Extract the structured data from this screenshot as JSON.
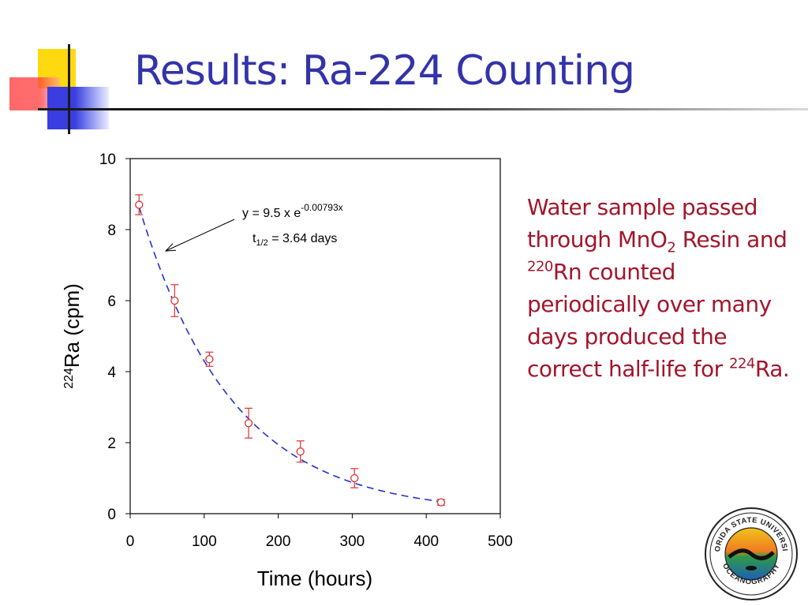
{
  "slide": {
    "title": "Results: Ra-224 Counting",
    "accent_colors": {
      "title": "#3333aa",
      "body_text": "#a3152b",
      "decor_yellow": "#ffd90f",
      "decor_red": "#ff5050",
      "decor_blue": "#3a3ee0"
    }
  },
  "description": {
    "part1": "Water sample passed through MnO",
    "sub1": "2",
    "part2": " Resin and ",
    "sup1": "220",
    "part3": "Rn counted periodically over many days produced the correct half-life for ",
    "sup2": "224",
    "part4": "Ra."
  },
  "logo": {
    "icon": "fsu-oceanography-seal",
    "top_text": "FLORIDA STATE UNIVERSITY",
    "bottom_text": "OCEANOGRAPHY"
  },
  "chart_data": {
    "type": "scatter",
    "xlabel": "Time (hours)",
    "ylabel_sup": "224",
    "ylabel": "Ra (cpm)",
    "xlim": [
      0,
      500
    ],
    "ylim": [
      0,
      10
    ],
    "xticks": [
      "0",
      "100",
      "200",
      "300",
      "400",
      "500"
    ],
    "yticks": [
      "0",
      "2",
      "4",
      "6",
      "8",
      "10"
    ],
    "grid": false,
    "legend": "none",
    "series": [
      {
        "x": [
          12,
          60,
          107,
          160,
          230,
          303,
          420
        ],
        "y": [
          8.7,
          6.0,
          4.35,
          2.55,
          1.75,
          1.0,
          0.32
        ],
        "yerr": [
          0.28,
          0.45,
          0.2,
          0.42,
          0.3,
          0.27,
          0.08
        ],
        "marker": "open-circle",
        "color": "#e03030"
      }
    ],
    "fit": {
      "a": 9.5,
      "k": -0.00793,
      "x_range": [
        12,
        420
      ],
      "style": "dashed",
      "color": "#2233cc"
    },
    "annotation": {
      "eq_prefix": "y = 9.5 x e",
      "eq_exponent": "-0.00793x",
      "half_prefix": "t",
      "half_sub": "1/2",
      "half_suffix": " = 3.64 days",
      "arrow_to": [
        48,
        7.4
      ]
    }
  }
}
